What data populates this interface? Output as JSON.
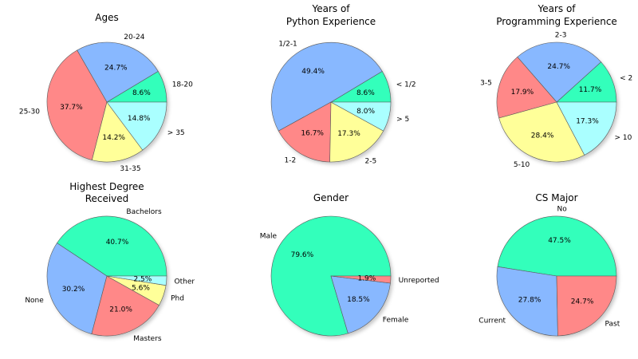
{
  "chart_data": [
    {
      "type": "pie",
      "title": "Ages",
      "categories": [
        "18-20",
        "20-24",
        "25-30",
        "31-35",
        "> 35"
      ],
      "values": [
        8.6,
        24.7,
        37.7,
        14.2,
        14.8
      ],
      "value_labels": [
        "8.6%",
        "24.7%",
        "37.7%",
        "14.2%",
        "14.8%"
      ],
      "colors": [
        "#33ffbb",
        "#88b8ff",
        "#ff8888",
        "#ffff99",
        "#aaffff"
      ]
    },
    {
      "type": "pie",
      "title": "Years of\nPython Experience",
      "categories": [
        "< 1/2",
        "1/2-1",
        "1-2",
        "2-5",
        "> 5"
      ],
      "values": [
        8.6,
        49.4,
        16.7,
        17.3,
        8.0
      ],
      "value_labels": [
        "8.6%",
        "49.4%",
        "16.7%",
        "17.3%",
        "8.0%"
      ],
      "colors": [
        "#33ffbb",
        "#88b8ff",
        "#ff8888",
        "#ffff99",
        "#aaffff"
      ]
    },
    {
      "type": "pie",
      "title": "Years of\nProgramming Experience",
      "categories": [
        "< 2",
        "2-3",
        "3-5",
        "5-10",
        "> 10"
      ],
      "values": [
        11.7,
        24.7,
        17.9,
        28.4,
        17.3
      ],
      "value_labels": [
        "11.7%",
        "24.7%",
        "17.9%",
        "28.4%",
        "17.3%"
      ],
      "colors": [
        "#33ffbb",
        "#88b8ff",
        "#ff8888",
        "#ffff99",
        "#aaffff"
      ]
    },
    {
      "type": "pie",
      "title": "Highest Degree\nReceived",
      "categories": [
        "Bachelors",
        "None",
        "Masters",
        "Phd",
        "Other"
      ],
      "values": [
        40.7,
        30.2,
        21.0,
        5.6,
        2.5
      ],
      "value_labels": [
        "40.7%",
        "30.2%",
        "21.0%",
        "5.6%",
        "2.5%"
      ],
      "colors": [
        "#33ffbb",
        "#88b8ff",
        "#ff8888",
        "#ffff99",
        "#aaffff"
      ]
    },
    {
      "type": "pie",
      "title": "Gender",
      "categories": [
        "Male",
        "Female",
        "Unreported"
      ],
      "values": [
        79.6,
        18.5,
        1.9
      ],
      "value_labels": [
        "79.6%",
        "18.5%",
        "1.9%"
      ],
      "colors": [
        "#33ffbb",
        "#88b8ff",
        "#ff8888"
      ]
    },
    {
      "type": "pie",
      "title": "CS Major",
      "categories": [
        "No",
        "Current",
        "Past"
      ],
      "values": [
        47.5,
        27.8,
        24.7
      ],
      "value_labels": [
        "47.5%",
        "27.8%",
        "24.7%"
      ],
      "colors": [
        "#33ffbb",
        "#88b8ff",
        "#ff8888"
      ]
    }
  ]
}
